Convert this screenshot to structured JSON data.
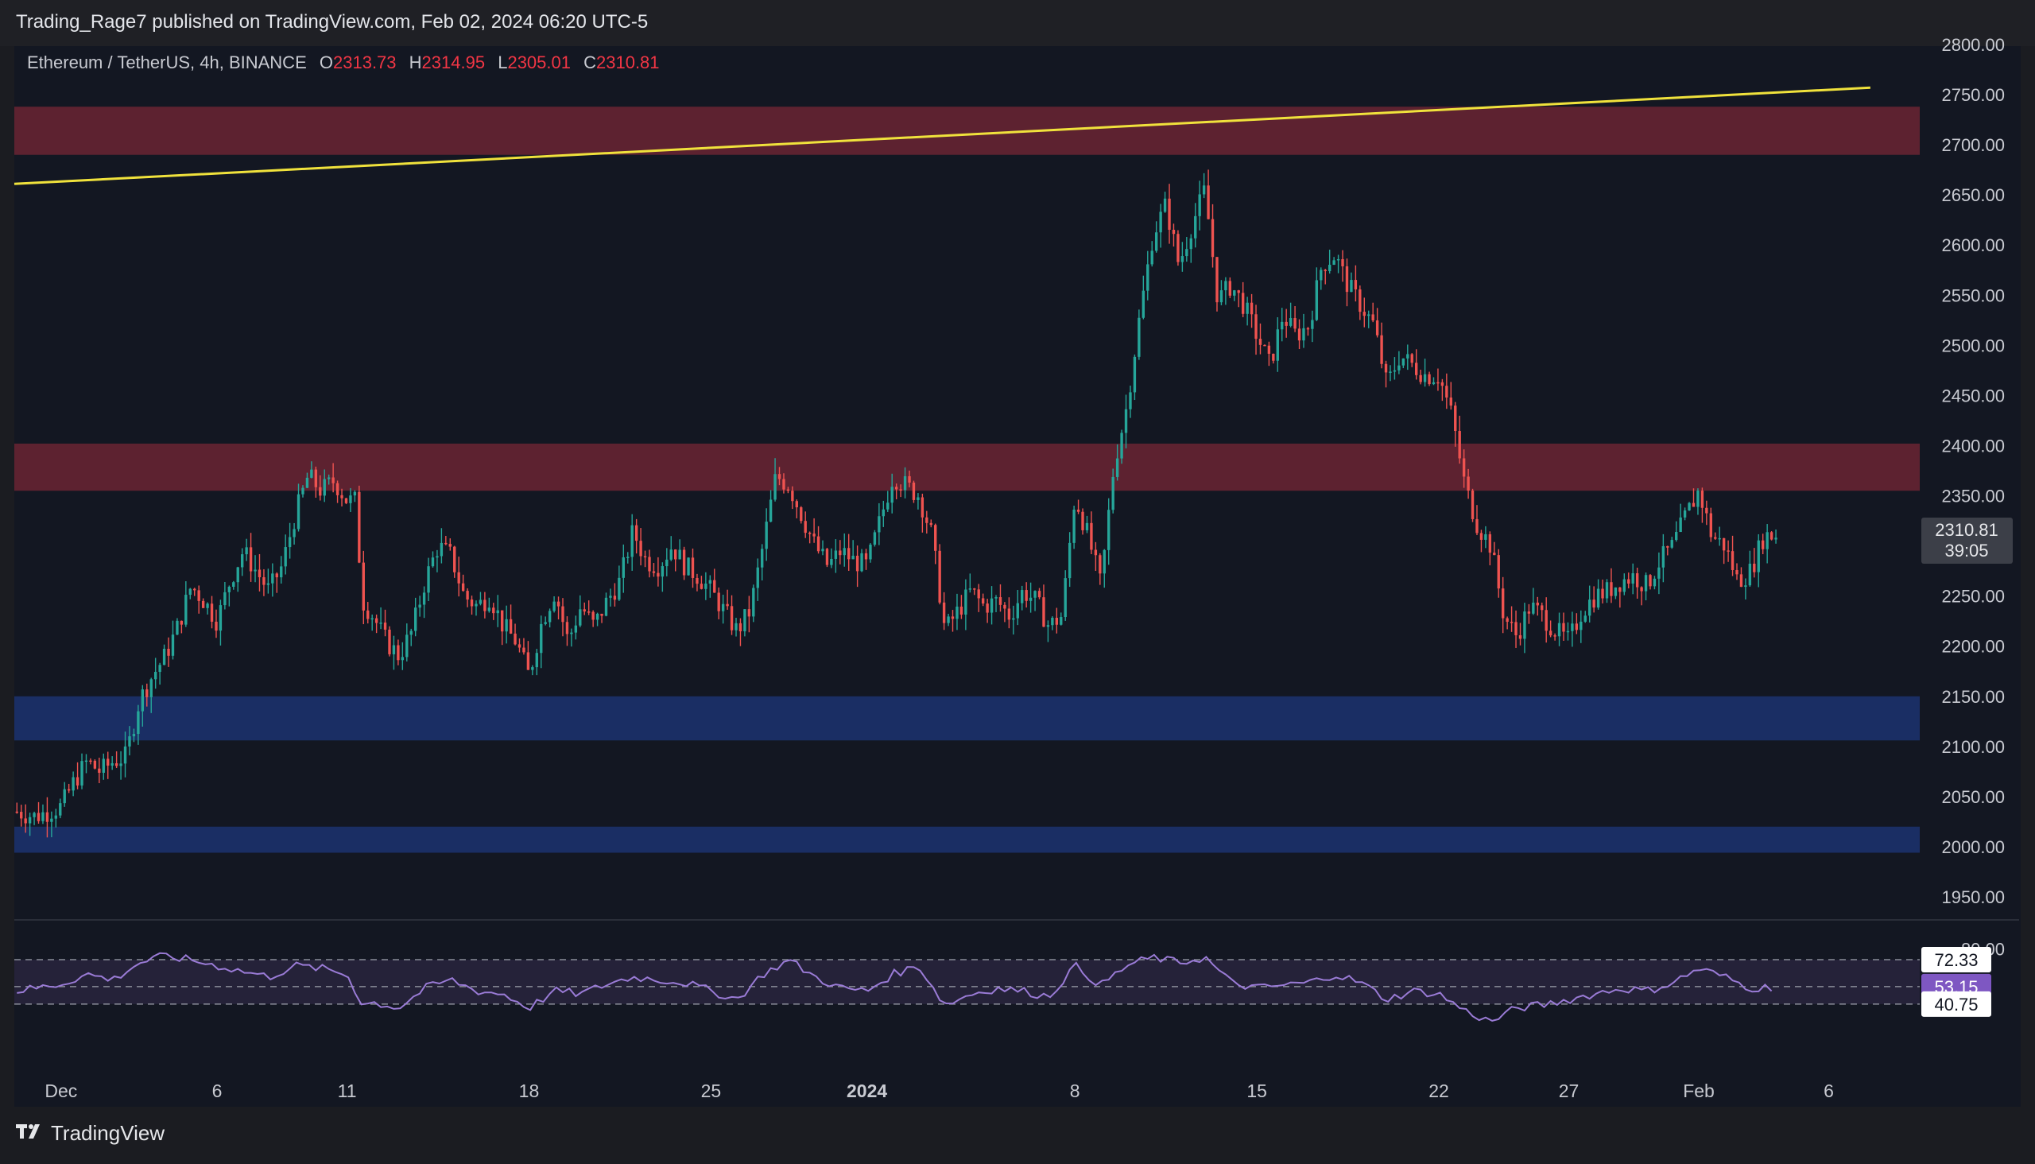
{
  "header": {
    "publisher_line": "Trading_Rage7 published on TradingView.com, Feb 02, 2024 06:20 UTC-5"
  },
  "legend": {
    "symbol": "Ethereum / TetherUS, 4h, BINANCE",
    "o_label": "O",
    "o": "2313.73",
    "h_label": "H",
    "h": "2314.95",
    "l_label": "L",
    "l": "2305.01",
    "c_label": "C",
    "c": "2310.81"
  },
  "footer": {
    "brand": "TradingView"
  },
  "colors": {
    "up": "#26a69a",
    "down": "#ef5350",
    "resistance_zone": "#6b2433",
    "support_zone": "#1c3370",
    "trendline": "#f0e23c",
    "rsi": "#9a7bd6",
    "rsi_band": "#2a2540"
  },
  "chart_data": {
    "type": "candlestick",
    "symbol": "Ethereum / TetherUS",
    "interval": "4h",
    "exchange": "BINANCE",
    "price_axis": {
      "min": 1950,
      "max": 2800,
      "ticks": [
        "2800.00",
        "2750.00",
        "2700.00",
        "2650.00",
        "2600.00",
        "2550.00",
        "2500.00",
        "2450.00",
        "2400.00",
        "2350.00",
        "2300.00",
        "2250.00",
        "2200.00",
        "2150.00",
        "2100.00",
        "2050.00",
        "2000.00",
        "1950.00"
      ]
    },
    "x_axis": {
      "labels": [
        "Dec",
        "6",
        "11",
        "18",
        "25",
        "2024",
        "8",
        "15",
        "22",
        "27",
        "Feb",
        "6"
      ],
      "label_days": [
        0,
        6,
        11,
        18,
        25,
        31,
        39,
        46,
        53,
        58,
        63,
        68
      ],
      "range_days": [
        -1.8,
        71.5
      ]
    },
    "last_price": {
      "value": "2310.81",
      "countdown": "39:05"
    },
    "zones": [
      {
        "kind": "resistance",
        "from": 2690,
        "to": 2738
      },
      {
        "kind": "resistance",
        "from": 2355,
        "to": 2402
      },
      {
        "kind": "support",
        "from": 2106,
        "to": 2150
      },
      {
        "kind": "support",
        "from": 1994,
        "to": 2020
      }
    ],
    "trendline": {
      "start": {
        "day": -1.8,
        "price": 2661
      },
      "end": {
        "day": 69.6,
        "price": 2757
      }
    },
    "close_path": [
      [
        -1.7,
        2035
      ],
      [
        -1,
        2030
      ],
      [
        0,
        2040
      ],
      [
        0.5,
        2065
      ],
      [
        1,
        2085
      ],
      [
        1.5,
        2075
      ],
      [
        2,
        2085
      ],
      [
        2.5,
        2090
      ],
      [
        3,
        2145
      ],
      [
        3.5,
        2170
      ],
      [
        4,
        2190
      ],
      [
        4.5,
        2220
      ],
      [
        5,
        2260
      ],
      [
        5.5,
        2245
      ],
      [
        6,
        2225
      ],
      [
        6.5,
        2265
      ],
      [
        7,
        2295
      ],
      [
        7.5,
        2275
      ],
      [
        8,
        2255
      ],
      [
        8.5,
        2280
      ],
      [
        9,
        2330
      ],
      [
        9.5,
        2370
      ],
      [
        10,
        2355
      ],
      [
        10.5,
        2365
      ],
      [
        11,
        2345
      ],
      [
        11.3,
        2345
      ],
      [
        11.6,
        2245
      ],
      [
        12,
        2230
      ],
      [
        12.5,
        2205
      ],
      [
        13,
        2190
      ],
      [
        13.5,
        2215
      ],
      [
        14,
        2265
      ],
      [
        14.5,
        2300
      ],
      [
        15,
        2290
      ],
      [
        15.5,
        2250
      ],
      [
        16,
        2240
      ],
      [
        16.5,
        2250
      ],
      [
        17,
        2220
      ],
      [
        17.5,
        2205
      ],
      [
        18,
        2170
      ],
      [
        18.5,
        2225
      ],
      [
        19,
        2255
      ],
      [
        19.5,
        2205
      ],
      [
        20,
        2240
      ],
      [
        20.5,
        2220
      ],
      [
        21,
        2245
      ],
      [
        21.5,
        2265
      ],
      [
        22,
        2315
      ],
      [
        22.5,
        2285
      ],
      [
        23,
        2280
      ],
      [
        23.5,
        2300
      ],
      [
        24,
        2280
      ],
      [
        24.5,
        2270
      ],
      [
        25,
        2255
      ],
      [
        25.5,
        2235
      ],
      [
        26,
        2215
      ],
      [
        26.5,
        2235
      ],
      [
        27,
        2300
      ],
      [
        27.5,
        2370
      ],
      [
        28,
        2360
      ],
      [
        28.5,
        2330
      ],
      [
        29,
        2300
      ],
      [
        29.5,
        2280
      ],
      [
        30,
        2295
      ],
      [
        30.5,
        2285
      ],
      [
        31,
        2280
      ],
      [
        31.5,
        2325
      ],
      [
        32,
        2370
      ],
      [
        32.5,
        2360
      ],
      [
        33,
        2350
      ],
      [
        33.5,
        2310
      ],
      [
        34,
        2215
      ],
      [
        34.5,
        2235
      ],
      [
        35,
        2255
      ],
      [
        35.5,
        2240
      ],
      [
        36,
        2245
      ],
      [
        36.5,
        2230
      ],
      [
        37,
        2255
      ],
      [
        37.5,
        2245
      ],
      [
        38,
        2220
      ],
      [
        38.5,
        2230
      ],
      [
        39,
        2350
      ],
      [
        39.5,
        2310
      ],
      [
        40,
        2260
      ],
      [
        40.5,
        2380
      ],
      [
        41,
        2440
      ],
      [
        41.5,
        2530
      ],
      [
        42,
        2610
      ],
      [
        42.5,
        2640
      ],
      [
        43,
        2580
      ],
      [
        43.5,
        2620
      ],
      [
        44,
        2655
      ],
      [
        44.5,
        2545
      ],
      [
        45,
        2560
      ],
      [
        45.5,
        2540
      ],
      [
        46,
        2510
      ],
      [
        46.5,
        2480
      ],
      [
        47,
        2530
      ],
      [
        47.5,
        2510
      ],
      [
        48,
        2520
      ],
      [
        48.5,
        2580
      ],
      [
        49,
        2590
      ],
      [
        49.5,
        2560
      ],
      [
        50,
        2540
      ],
      [
        50.5,
        2520
      ],
      [
        51,
        2460
      ],
      [
        51.5,
        2490
      ],
      [
        52,
        2480
      ],
      [
        52.5,
        2470
      ],
      [
        53,
        2470
      ],
      [
        53.5,
        2430
      ],
      [
        54,
        2360
      ],
      [
        54.5,
        2320
      ],
      [
        55,
        2300
      ],
      [
        55.5,
        2230
      ],
      [
        56,
        2210
      ],
      [
        56.5,
        2240
      ],
      [
        57,
        2230
      ],
      [
        57.5,
        2215
      ],
      [
        58,
        2205
      ],
      [
        58.5,
        2235
      ],
      [
        59,
        2250
      ],
      [
        59.5,
        2255
      ],
      [
        60,
        2265
      ],
      [
        60.5,
        2270
      ],
      [
        61,
        2260
      ],
      [
        61.5,
        2285
      ],
      [
        62,
        2300
      ],
      [
        62.5,
        2330
      ],
      [
        63,
        2355
      ],
      [
        63.5,
        2310
      ],
      [
        64,
        2300
      ],
      [
        64.5,
        2265
      ],
      [
        65,
        2275
      ],
      [
        65.5,
        2310
      ],
      [
        66,
        2311
      ]
    ],
    "rsi": {
      "levels": {
        "upper": 72.33,
        "middle": 53.15,
        "lower": 40.75
      },
      "axis_ticks": [
        "80.00"
      ],
      "value_labels": [
        "72.33",
        "53.15",
        "40.75"
      ],
      "path": [
        [
          -1.7,
          50
        ],
        [
          0,
          55
        ],
        [
          1,
          62
        ],
        [
          2,
          58
        ],
        [
          3,
          70
        ],
        [
          4,
          75
        ],
        [
          5,
          72
        ],
        [
          6,
          68
        ],
        [
          7,
          64
        ],
        [
          8,
          60
        ],
        [
          9,
          68
        ],
        [
          10,
          66
        ],
        [
          11,
          62
        ],
        [
          11.6,
          40
        ],
        [
          12,
          42
        ],
        [
          13,
          38
        ],
        [
          14,
          52
        ],
        [
          15,
          58
        ],
        [
          16,
          50
        ],
        [
          17,
          48
        ],
        [
          18,
          38
        ],
        [
          19,
          50
        ],
        [
          20,
          48
        ],
        [
          21,
          55
        ],
        [
          22,
          60
        ],
        [
          23,
          58
        ],
        [
          24,
          56
        ],
        [
          25,
          50
        ],
        [
          26,
          44
        ],
        [
          27,
          62
        ],
        [
          28,
          72
        ],
        [
          29,
          60
        ],
        [
          30,
          52
        ],
        [
          31,
          50
        ],
        [
          32,
          62
        ],
        [
          33,
          68
        ],
        [
          34,
          40
        ],
        [
          35,
          48
        ],
        [
          36,
          52
        ],
        [
          37,
          50
        ],
        [
          38,
          46
        ],
        [
          39,
          68
        ],
        [
          40,
          54
        ],
        [
          41,
          68
        ],
        [
          42,
          74
        ],
        [
          43,
          70
        ],
        [
          44,
          74
        ],
        [
          45,
          56
        ],
        [
          46,
          52
        ],
        [
          47,
          54
        ],
        [
          48,
          56
        ],
        [
          49,
          62
        ],
        [
          50,
          56
        ],
        [
          51,
          44
        ],
        [
          52,
          50
        ],
        [
          53,
          48
        ],
        [
          54,
          36
        ],
        [
          55,
          28
        ],
        [
          56,
          38
        ],
        [
          57,
          40
        ],
        [
          58,
          44
        ],
        [
          59,
          48
        ],
        [
          60,
          52
        ],
        [
          61,
          50
        ],
        [
          62,
          56
        ],
        [
          63,
          66
        ],
        [
          64,
          60
        ],
        [
          65,
          52
        ],
        [
          66,
          53
        ]
      ]
    }
  }
}
